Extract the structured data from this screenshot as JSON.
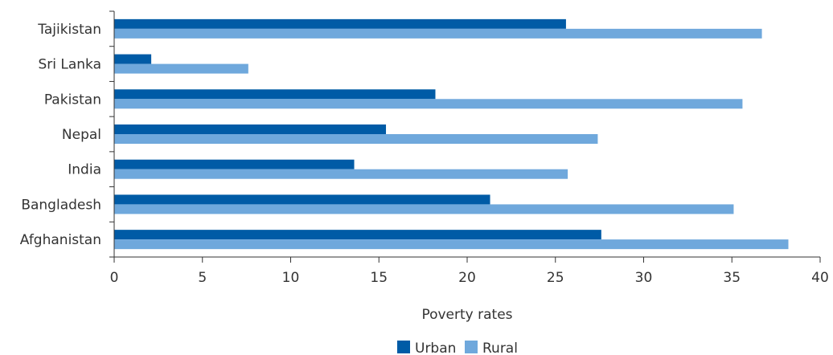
{
  "chart_data": {
    "type": "bar",
    "orientation": "horizontal",
    "categories": [
      "Tajikistan",
      "Sri Lanka",
      "Pakistan",
      "Nepal",
      "India",
      "Bangladesh",
      "Afghanistan"
    ],
    "series": [
      {
        "name": "Urban",
        "color": "#005ba6",
        "values": [
          25.6,
          2.1,
          18.2,
          15.4,
          13.6,
          21.3,
          27.6
        ]
      },
      {
        "name": "Rural",
        "color": "#6fa8dc",
        "values": [
          36.7,
          7.6,
          35.6,
          27.4,
          25.7,
          35.1,
          38.2
        ]
      }
    ],
    "xlabel": "Poverty rates",
    "ylabel": "",
    "xlim": [
      0,
      40
    ],
    "xticks": [
      "0",
      "5",
      "10",
      "15",
      "20",
      "25",
      "30",
      "35",
      "40"
    ],
    "grid": false,
    "legend_position": "bottom"
  }
}
